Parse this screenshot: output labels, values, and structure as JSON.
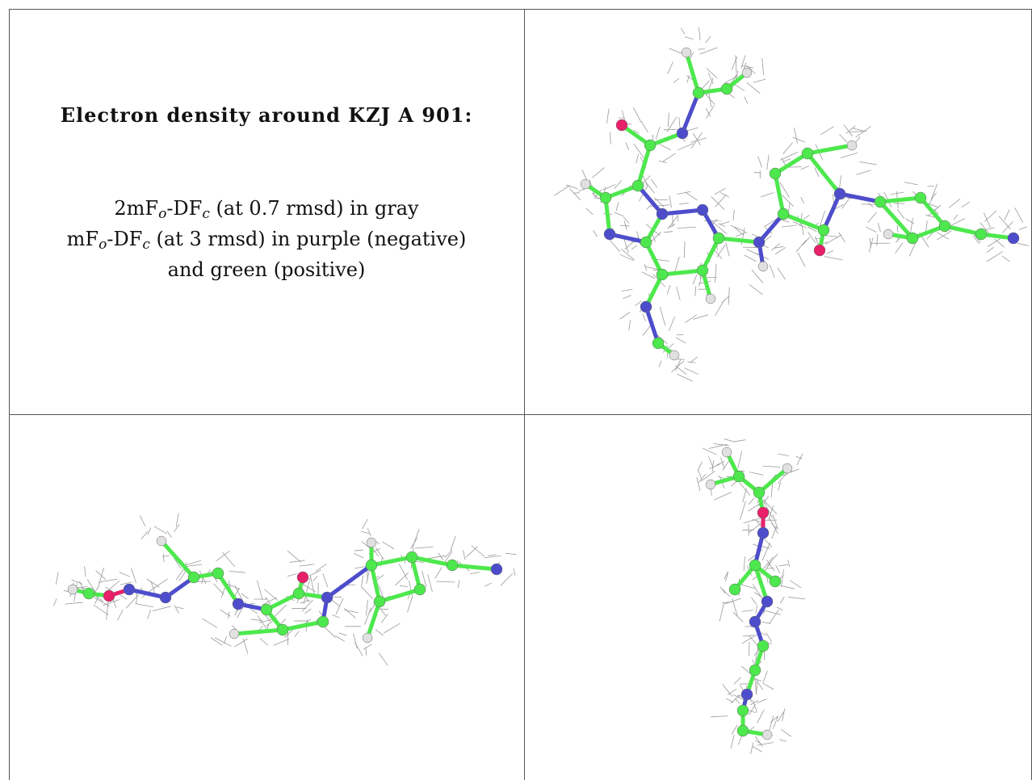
{
  "caption": {
    "title": "Electron density around KZJ A 901:",
    "lines": [
      [
        "2mF",
        "o",
        "-DF",
        "c",
        " (at 0.7 rmsd) in gray"
      ],
      [
        "mF",
        "o",
        "-DF",
        "c",
        " (at 3 rmsd) in purple (negative)"
      ],
      [
        "and green (positive)"
      ]
    ]
  }
}
